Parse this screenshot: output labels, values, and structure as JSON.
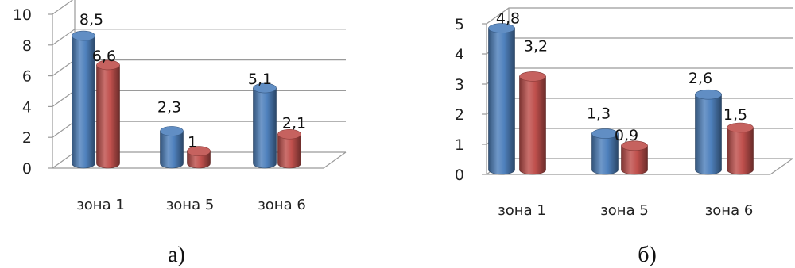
{
  "chart_data": [
    {
      "type": "bar",
      "caption": "а)",
      "categories": [
        "зона 1",
        "зона 5",
        "зона 6"
      ],
      "series": [
        {
          "values": [
            8.5,
            2.3,
            5.1
          ],
          "labels": [
            "8,5",
            "2,3",
            "5,1"
          ],
          "color": "#4f81bd"
        },
        {
          "values": [
            6.6,
            1,
            2.1
          ],
          "labels": [
            "6,6",
            "1",
            "2,1"
          ],
          "color": "#c0504d"
        }
      ],
      "yticks": [
        "0",
        "2",
        "4",
        "6",
        "8",
        "10"
      ],
      "ylim": [
        0,
        10
      ],
      "grid": true
    },
    {
      "type": "bar",
      "caption": "б)",
      "categories": [
        "зона 1",
        "зона 5",
        "зона 6"
      ],
      "series": [
        {
          "values": [
            4.8,
            1.3,
            2.6
          ],
          "labels": [
            "4,8",
            "1,3",
            "2,6"
          ],
          "color": "#4f81bd"
        },
        {
          "values": [
            3.2,
            0.9,
            1.5
          ],
          "labels": [
            "3,2",
            "0,9",
            "1,5"
          ],
          "color": "#c0504d"
        }
      ],
      "yticks": [
        "0",
        "1",
        "2",
        "3",
        "4",
        "5"
      ],
      "ylim": [
        0,
        5
      ],
      "grid": true
    }
  ]
}
